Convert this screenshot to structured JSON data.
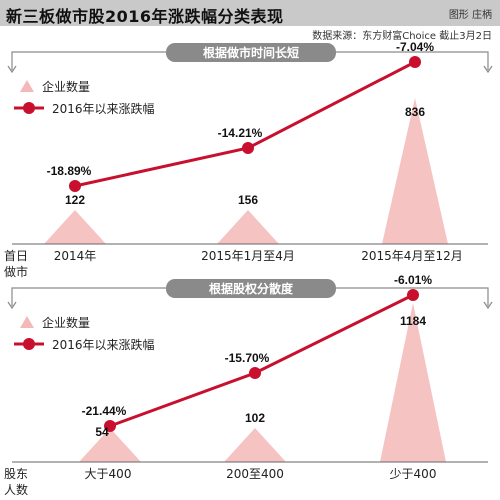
{
  "header": {
    "title": "新三板做市股2016年涨跌幅分类表现",
    "credit": "图形 庄柄",
    "source": "数据来源：东方财富Choice 截止3月2日"
  },
  "legend": {
    "count_label": "企业数量",
    "change_label": "2016年以来涨跌幅"
  },
  "colors": {
    "line": "#c8102e",
    "triangle": "#f4b8b8",
    "banner": "#8a8a8a",
    "header_bg": "#c9c9c9"
  },
  "chart_data": [
    {
      "type": "line",
      "section_header": "根据做市时间长短",
      "axis_label": [
        "首日",
        "做市"
      ],
      "categories": [
        "2014年",
        "2015年1月至4月",
        "2015年4月至12月"
      ],
      "series": [
        {
          "name": "企业数量",
          "type": "area",
          "values": [
            122,
            156,
            836
          ]
        },
        {
          "name": "2016年以来涨跌幅",
          "type": "line",
          "values": [
            -18.89,
            -14.21,
            -7.04
          ]
        }
      ],
      "value_labels": {
        "counts": [
          "122",
          "156",
          "836"
        ],
        "changes": [
          "-18.89%",
          "-14.21%",
          "-7.04%"
        ]
      }
    },
    {
      "type": "line",
      "section_header": "根据股权分散度",
      "axis_label": [
        "股东",
        "人数"
      ],
      "categories": [
        "大于400",
        "200至400",
        "少于400"
      ],
      "series": [
        {
          "name": "企业数量",
          "type": "area",
          "values": [
            54,
            102,
            1184
          ]
        },
        {
          "name": "2016年以来涨跌幅",
          "type": "line",
          "values": [
            -21.44,
            -15.7,
            -6.01
          ]
        }
      ],
      "value_labels": {
        "counts": [
          "54",
          "102",
          "1184"
        ],
        "changes": [
          "-21.44%",
          "-15.70%",
          "-6.01%"
        ]
      }
    }
  ]
}
